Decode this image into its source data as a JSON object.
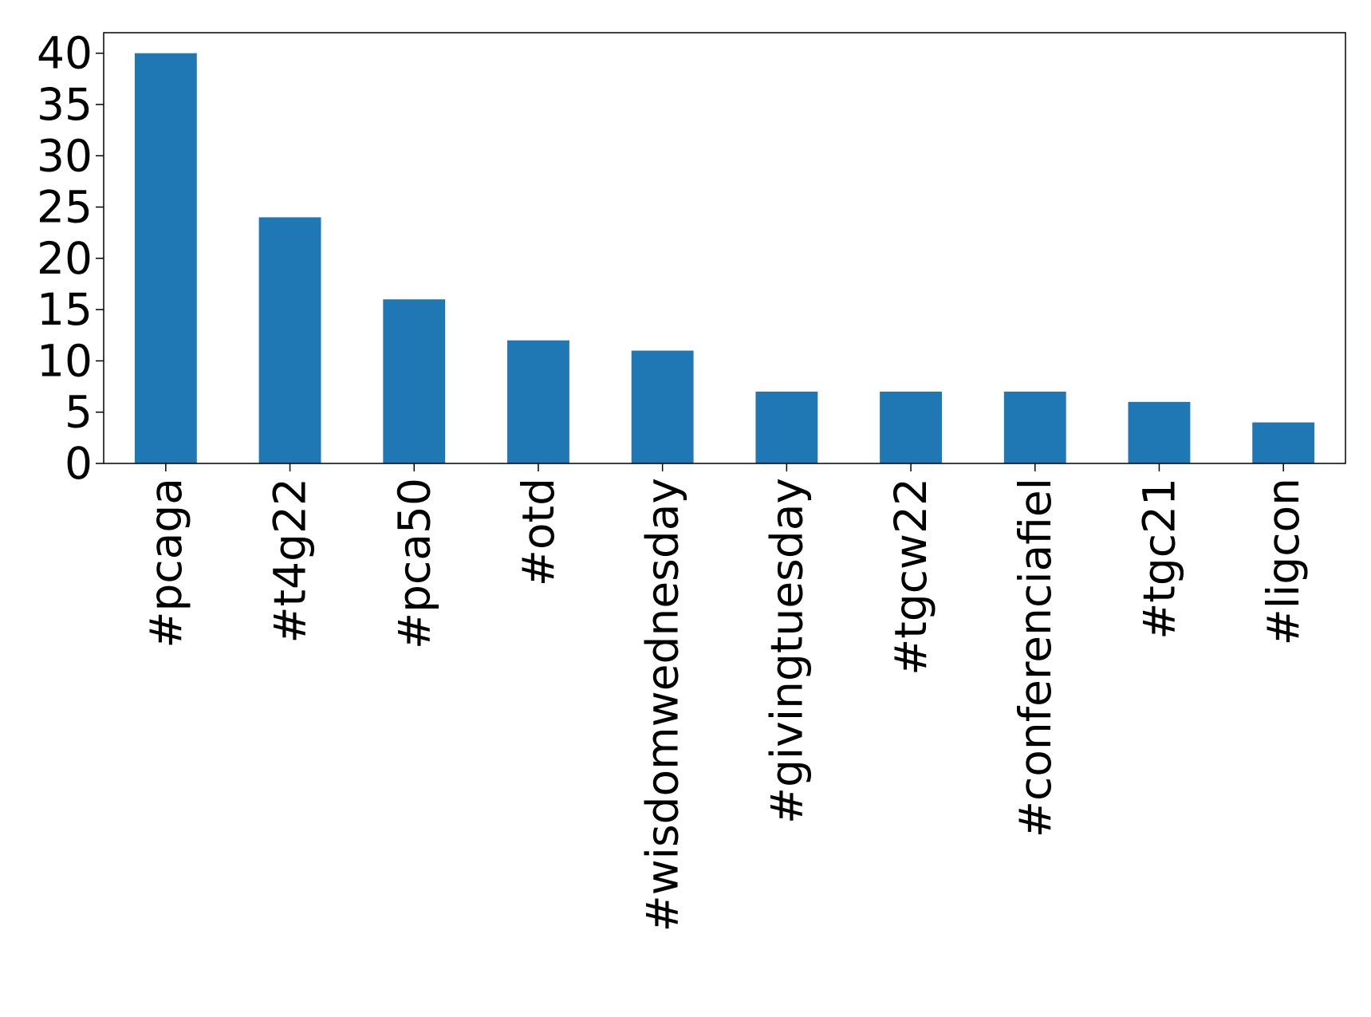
{
  "chart_data": {
    "type": "bar",
    "categories": [
      "#pcaga",
      "#t4g22",
      "#pca50",
      "#otd",
      "#wisdomwednesday",
      "#givingtuesday",
      "#tgcw22",
      "#conferenciafiel",
      "#tgc21",
      "#ligcon"
    ],
    "values": [
      40,
      24,
      16,
      12,
      11,
      7,
      7,
      7,
      6,
      4
    ],
    "color": "#1f77b4",
    "ylim": [
      0,
      42
    ],
    "yticks": [
      0,
      5,
      10,
      15,
      20,
      25,
      30,
      35,
      40
    ],
    "grid": false
  }
}
